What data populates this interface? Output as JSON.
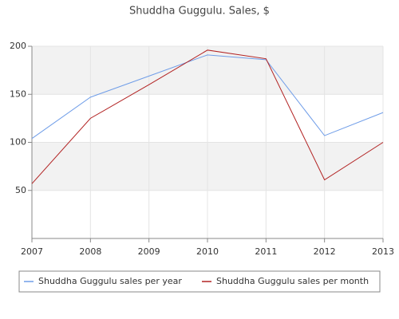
{
  "chart_data": {
    "type": "line",
    "title": "Shuddha Guggulu. Sales, $",
    "x": [
      2007,
      2008,
      2009,
      2010,
      2011,
      2012,
      2013
    ],
    "xlim": [
      2007,
      2013
    ],
    "xticks": [
      2007,
      2008,
      2009,
      2010,
      2011,
      2012,
      2013
    ],
    "ylim": [
      0,
      200
    ],
    "yticks": [
      50,
      100,
      150,
      200
    ],
    "grid": true,
    "series": [
      {
        "name": "Shuddha Guggulu sales per year",
        "color": "#6f9de8",
        "values": [
          104,
          147,
          169,
          191,
          186,
          107,
          131
        ]
      },
      {
        "name": "Shuddha Guggulu sales per month",
        "color": "#b22222",
        "values": [
          57,
          125,
          160,
          196,
          187,
          61,
          100
        ]
      }
    ]
  }
}
